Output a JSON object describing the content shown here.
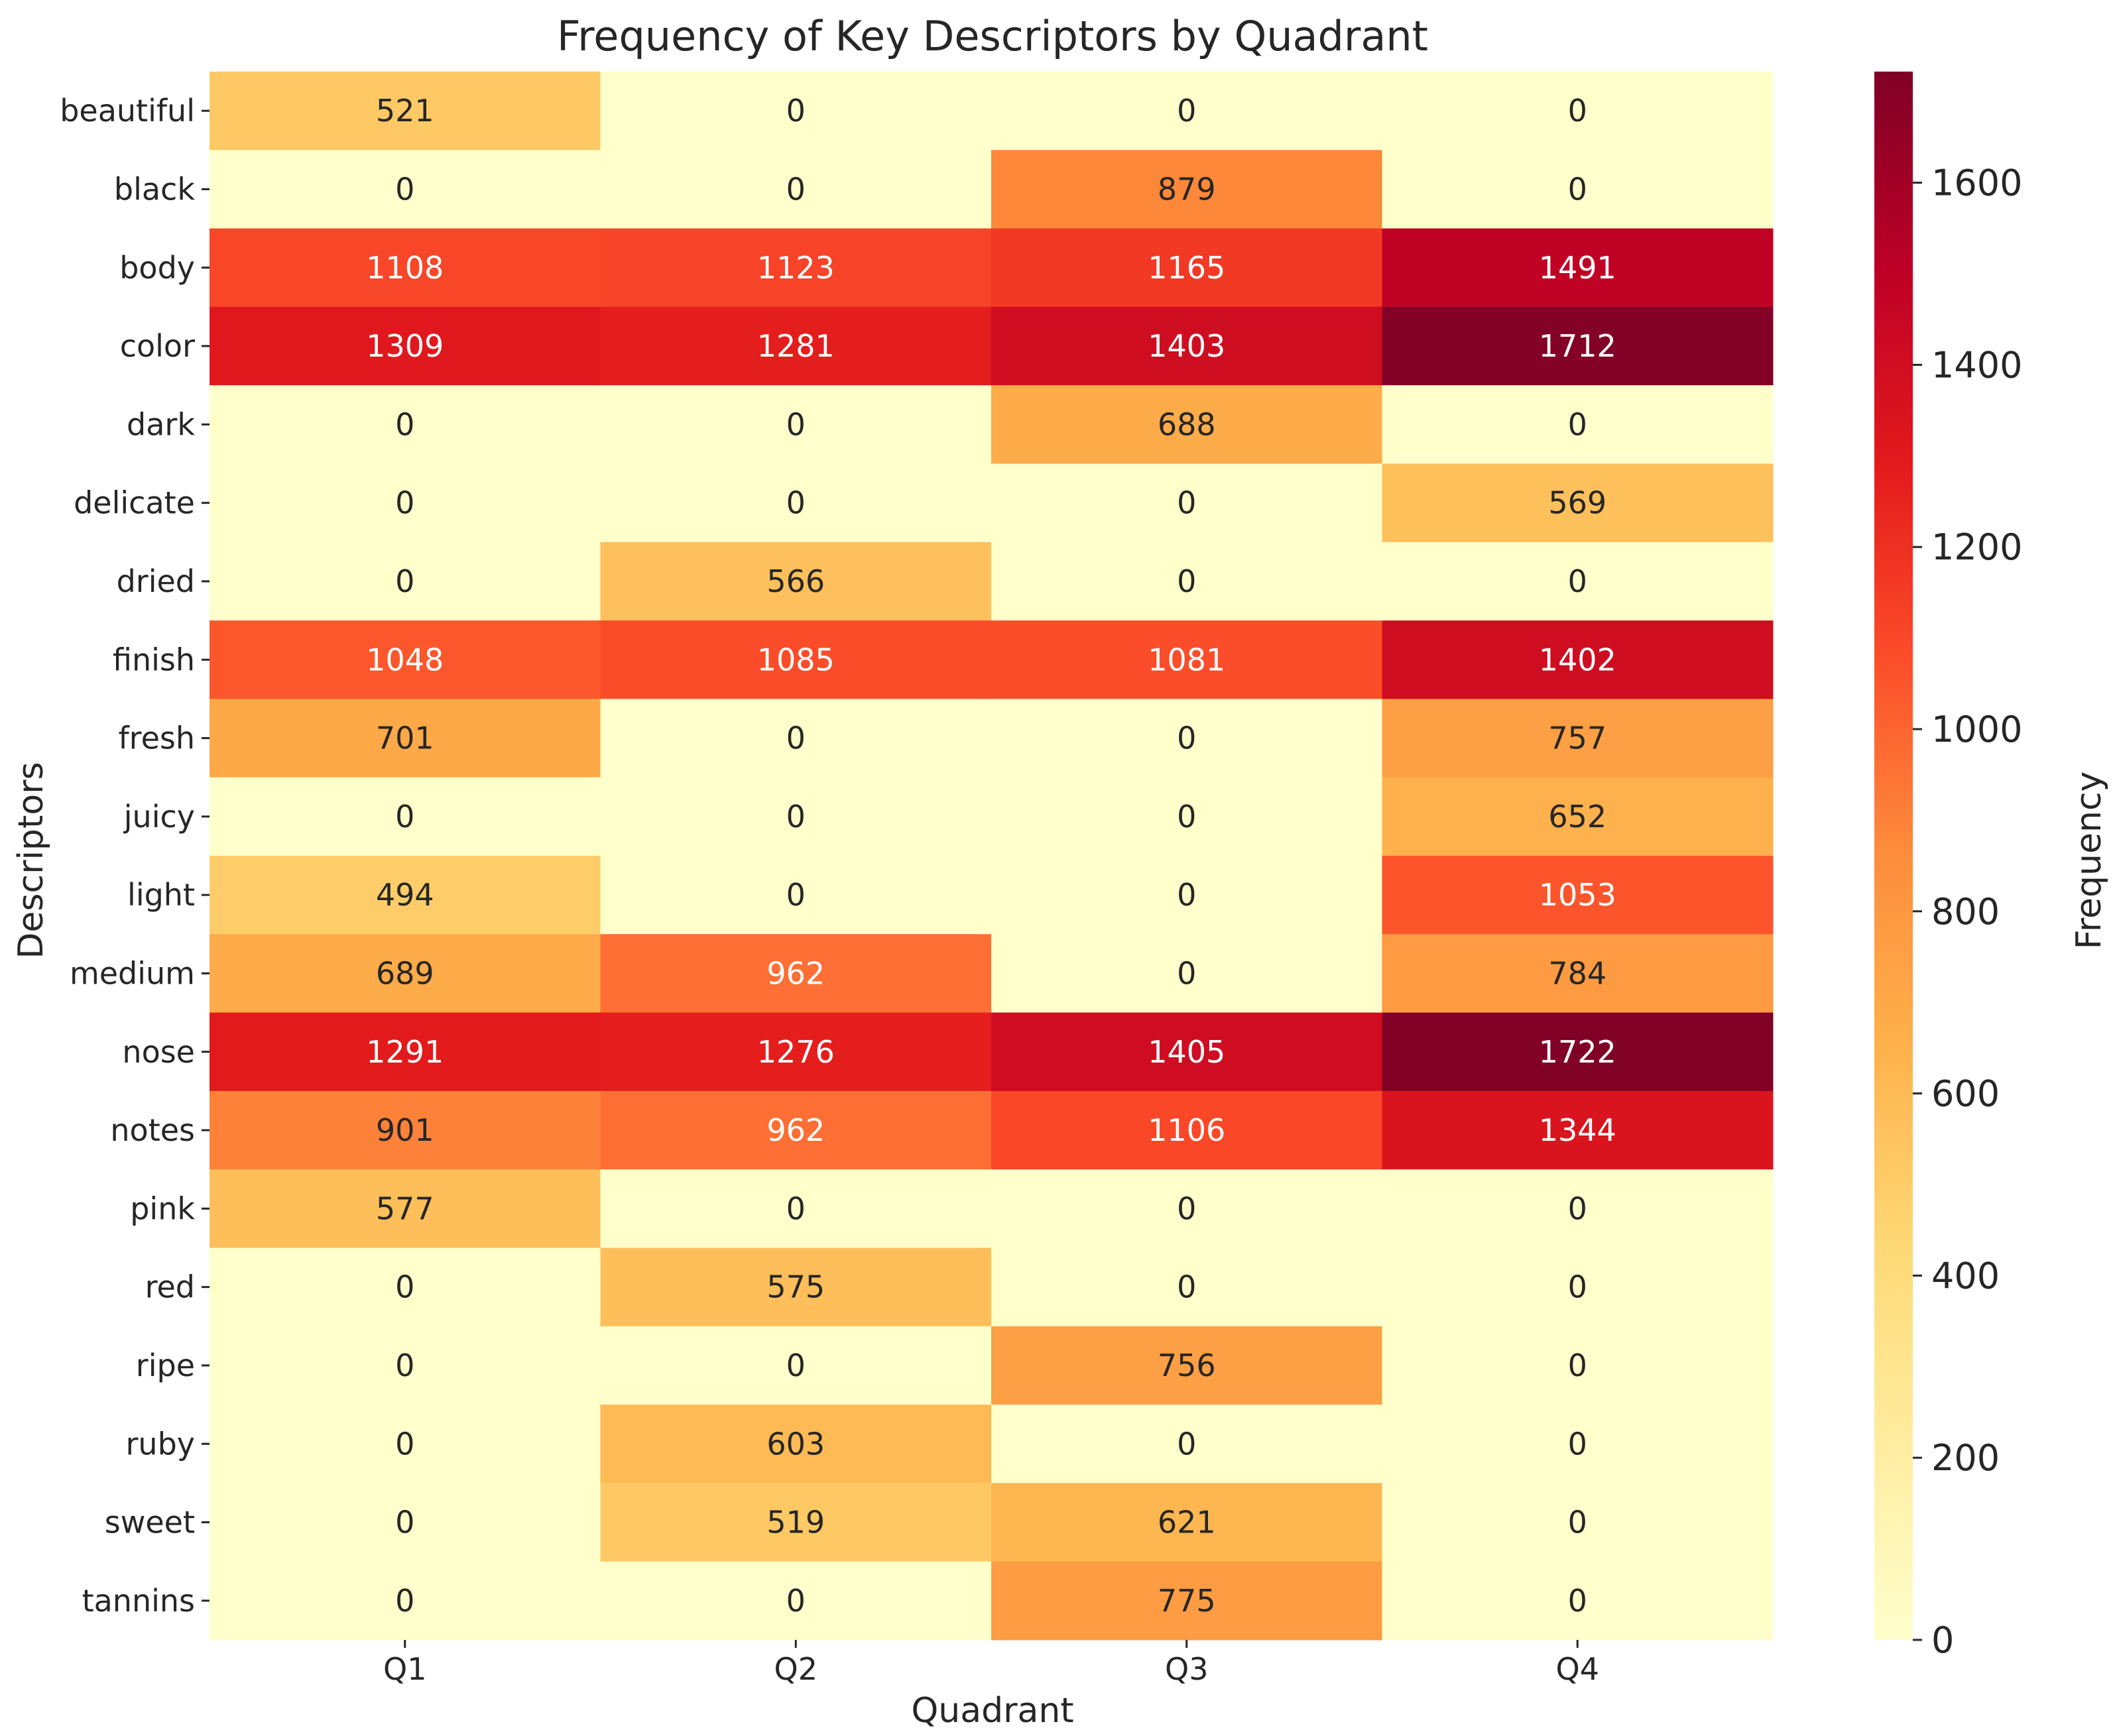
{
  "chart_data": {
    "type": "heatmap",
    "title": "Frequency of Key Descriptors by Quadrant",
    "xlabel": "Quadrant",
    "ylabel": "Descriptors",
    "colorbar_label": "Frequency",
    "colormap": "YlOrRd",
    "vmin": 0,
    "vmax": 1722,
    "colorbar_ticks": [
      0,
      200,
      400,
      600,
      800,
      1000,
      1200,
      1400,
      1600
    ],
    "columns": [
      "Q1",
      "Q2",
      "Q3",
      "Q4"
    ],
    "rows": [
      "beautiful",
      "black",
      "body",
      "color",
      "dark",
      "delicate",
      "dried",
      "finish",
      "fresh",
      "juicy",
      "light",
      "medium",
      "nose",
      "notes",
      "pink",
      "red",
      "ripe",
      "ruby",
      "sweet",
      "tannins"
    ],
    "values": [
      [
        521,
        0,
        0,
        0
      ],
      [
        0,
        0,
        879,
        0
      ],
      [
        1108,
        1123,
        1165,
        1491
      ],
      [
        1309,
        1281,
        1403,
        1712
      ],
      [
        0,
        0,
        688,
        0
      ],
      [
        0,
        0,
        0,
        569
      ],
      [
        0,
        566,
        0,
        0
      ],
      [
        1048,
        1085,
        1081,
        1402
      ],
      [
        701,
        0,
        0,
        757
      ],
      [
        0,
        0,
        0,
        652
      ],
      [
        494,
        0,
        0,
        1053
      ],
      [
        689,
        962,
        0,
        784
      ],
      [
        1291,
        1276,
        1405,
        1722
      ],
      [
        901,
        962,
        1106,
        1344
      ],
      [
        577,
        0,
        0,
        0
      ],
      [
        0,
        575,
        0,
        0
      ],
      [
        0,
        0,
        756,
        0
      ],
      [
        0,
        603,
        0,
        0
      ],
      [
        0,
        519,
        621,
        0
      ],
      [
        0,
        0,
        775,
        0
      ]
    ]
  }
}
